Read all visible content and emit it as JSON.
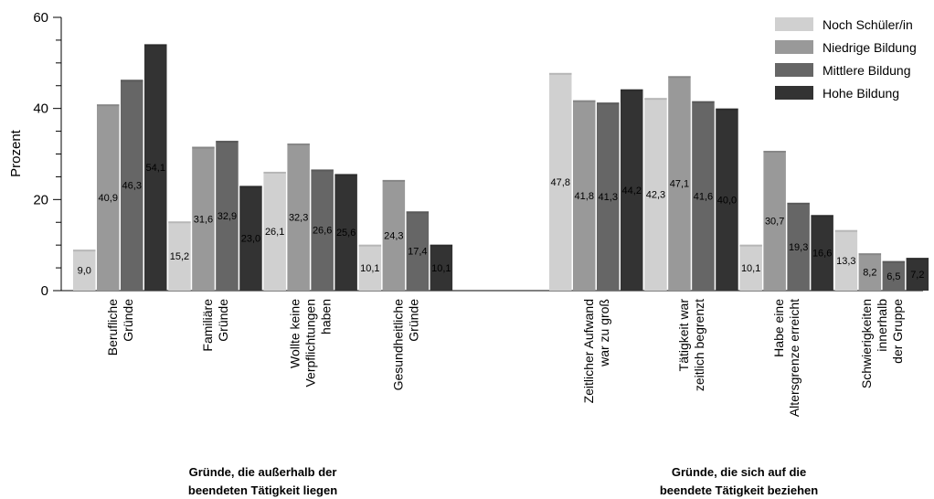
{
  "chart_data": {
    "type": "bar",
    "title": "",
    "ylabel": "Prozent",
    "ylim": [
      0,
      60
    ],
    "yticks": [
      0,
      20,
      40,
      60
    ],
    "grid": false,
    "legend_position": "top-right",
    "decimal_separator": ",",
    "categories": [
      "Berufliche Gründe",
      "Familiäre Gründe",
      "Wollte keine Verpflichtungen haben",
      "Gesundheitliche Gründe",
      "",
      "Zeitlicher Aufwand war zu groß",
      "Tätigkeit war zeitlich begrenzt",
      "Habe eine Altersgrenze erreicht",
      "Schwierigkeiten innerhalb der Gruppe"
    ],
    "category_label_lines": [
      [
        "Berufliche",
        "Gründe"
      ],
      [
        "Familiäre",
        "Gründe"
      ],
      [
        "Wollte keine",
        "Verpflichtungen",
        "haben"
      ],
      [
        "Gesundheitliche",
        "Gründe"
      ],
      [],
      [
        "Zeitlicher Aufwand",
        "war zu groß"
      ],
      [
        "Tätigkeit war",
        "zeitlich begrenzt"
      ],
      [
        "Habe eine",
        "Altersgrenze erreicht"
      ],
      [
        "Schwierigkeiten",
        "innerhalb",
        "der Gruppe"
      ]
    ],
    "series": [
      {
        "name": "Noch Schüler/in",
        "color": "#d0d0d0",
        "values": [
          9.0,
          15.2,
          26.1,
          10.1,
          null,
          47.8,
          42.3,
          10.1,
          13.3
        ]
      },
      {
        "name": "Niedrige Bildung",
        "color": "#999999",
        "values": [
          40.9,
          31.6,
          32.3,
          24.3,
          null,
          41.8,
          47.1,
          30.7,
          8.2
        ]
      },
      {
        "name": "Mittlere Bildung",
        "color": "#666666",
        "values": [
          46.3,
          32.9,
          26.6,
          17.4,
          null,
          41.3,
          41.6,
          19.3,
          6.5
        ]
      },
      {
        "name": "Hohe Bildung",
        "color": "#333333",
        "values": [
          54.1,
          23.0,
          25.6,
          10.1,
          null,
          44.2,
          40.0,
          16.6,
          7.2
        ]
      }
    ],
    "groups": [
      {
        "lines": [
          "Gründe, die außerhalb der",
          "beendeten Tätigkeit liegen"
        ],
        "categories": [
          0,
          1,
          2,
          3
        ]
      },
      {
        "lines": [
          "Gründe, die sich auf die",
          "beendete Tätigkeit beziehen"
        ],
        "categories": [
          5,
          6,
          7,
          8
        ]
      }
    ]
  }
}
